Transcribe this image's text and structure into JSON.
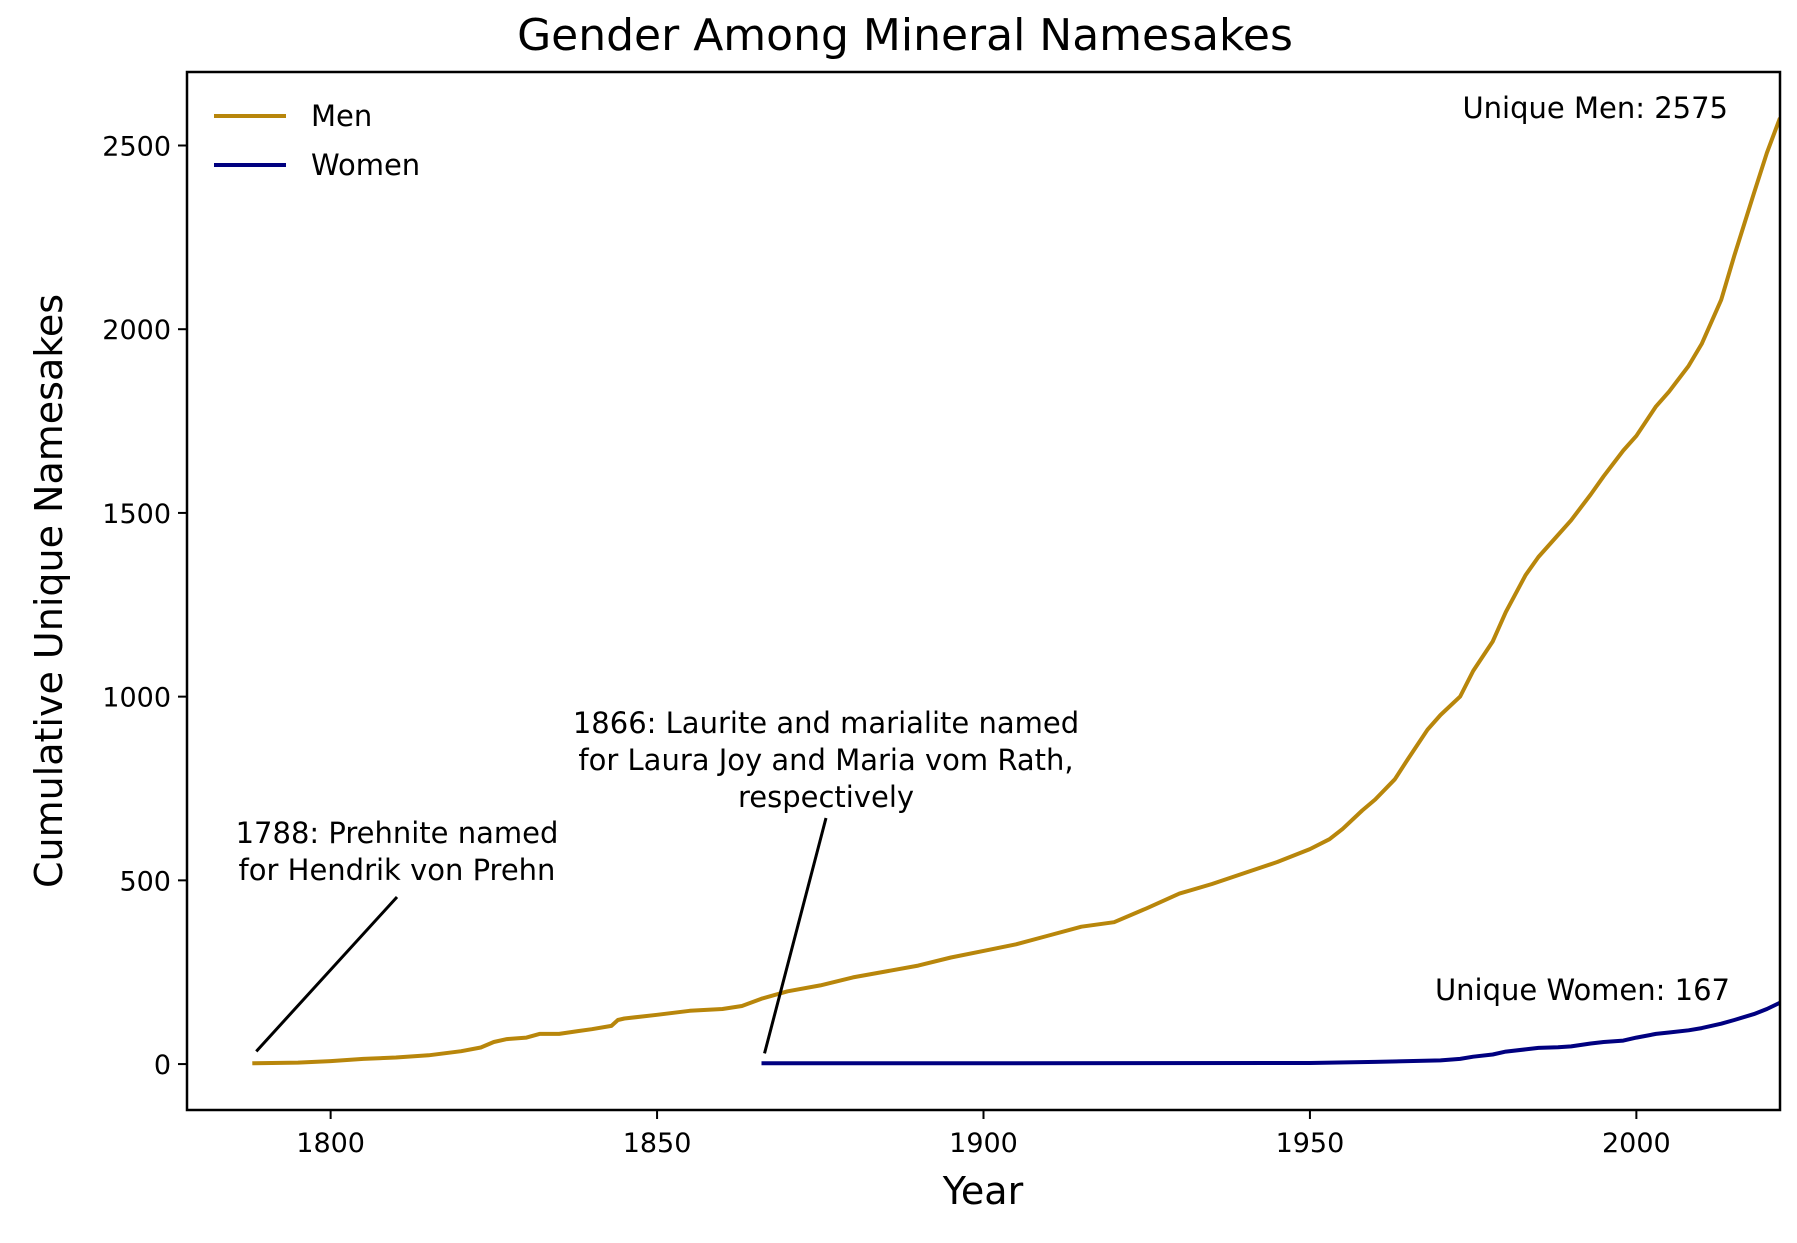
{
  "chart_data": {
    "type": "line",
    "title": "Gender Among Mineral Namesakes",
    "xlabel": "Year",
    "ylabel": "Cumulative Unique Namesakes",
    "xlim": [
      1778,
      2022
    ],
    "ylim": [
      -125,
      2700
    ],
    "x_ticks": [
      1800,
      1850,
      1900,
      1950,
      2000
    ],
    "y_ticks": [
      0,
      500,
      1000,
      1500,
      2000,
      2500
    ],
    "grid": false,
    "legend_position": "top-left",
    "series": [
      {
        "name": "Men",
        "color": "#B8860B",
        "x": [
          1788,
          1795,
          1800,
          1805,
          1810,
          1815,
          1820,
          1823,
          1825,
          1827,
          1830,
          1832,
          1835,
          1838,
          1840,
          1843,
          1844,
          1845,
          1850,
          1855,
          1860,
          1863,
          1866,
          1870,
          1875,
          1880,
          1885,
          1890,
          1895,
          1900,
          1905,
          1910,
          1915,
          1920,
          1925,
          1930,
          1935,
          1940,
          1945,
          1950,
          1953,
          1955,
          1958,
          1960,
          1963,
          1965,
          1968,
          1970,
          1973,
          1975,
          1978,
          1980,
          1983,
          1985,
          1988,
          1990,
          1993,
          1995,
          1998,
          2000,
          2003,
          2005,
          2008,
          2010,
          2013,
          2015,
          2018,
          2020,
          2022
        ],
        "y": [
          2,
          4,
          8,
          14,
          18,
          24,
          35,
          45,
          60,
          68,
          72,
          82,
          82,
          90,
          95,
          104,
          120,
          124,
          134,
          145,
          150,
          158,
          178,
          198,
          214,
          236,
          252,
          268,
          290,
          308,
          326,
          350,
          374,
          386,
          424,
          464,
          490,
          520,
          550,
          585,
          612,
          640,
          690,
          720,
          775,
          830,
          910,
          950,
          1000,
          1070,
          1150,
          1230,
          1330,
          1380,
          1440,
          1480,
          1550,
          1600,
          1670,
          1710,
          1790,
          1830,
          1900,
          1960,
          2080,
          2200,
          2370,
          2480,
          2575
        ]
      },
      {
        "name": "Women",
        "color": "#000080",
        "x": [
          1866,
          1900,
          1950,
          1960,
          1965,
          1970,
          1973,
          1975,
          1978,
          1980,
          1983,
          1985,
          1988,
          1990,
          1993,
          1995,
          1998,
          2000,
          2003,
          2005,
          2008,
          2010,
          2013,
          2015,
          2018,
          2020,
          2022
        ],
        "y": [
          2,
          2,
          3,
          6,
          8,
          10,
          14,
          20,
          26,
          34,
          40,
          44,
          46,
          48,
          56,
          60,
          64,
          72,
          82,
          86,
          92,
          98,
          110,
          120,
          136,
          150,
          167
        ]
      }
    ],
    "annotations": [
      {
        "id": "unique-men",
        "text": "Unique Men: 2575"
      },
      {
        "id": "unique-women",
        "text": "Unique Women: 167"
      },
      {
        "id": "prehnite",
        "lines": [
          "1788: Prehnite named",
          "for Hendrik von Prehn"
        ],
        "x": 1788,
        "y": 2
      },
      {
        "id": "laurite",
        "lines": [
          "1866: Laurite and marialite named",
          "for Laura Joy and Maria vom Rath,",
          "respectively"
        ],
        "x": 1866,
        "y": 2
      }
    ]
  }
}
